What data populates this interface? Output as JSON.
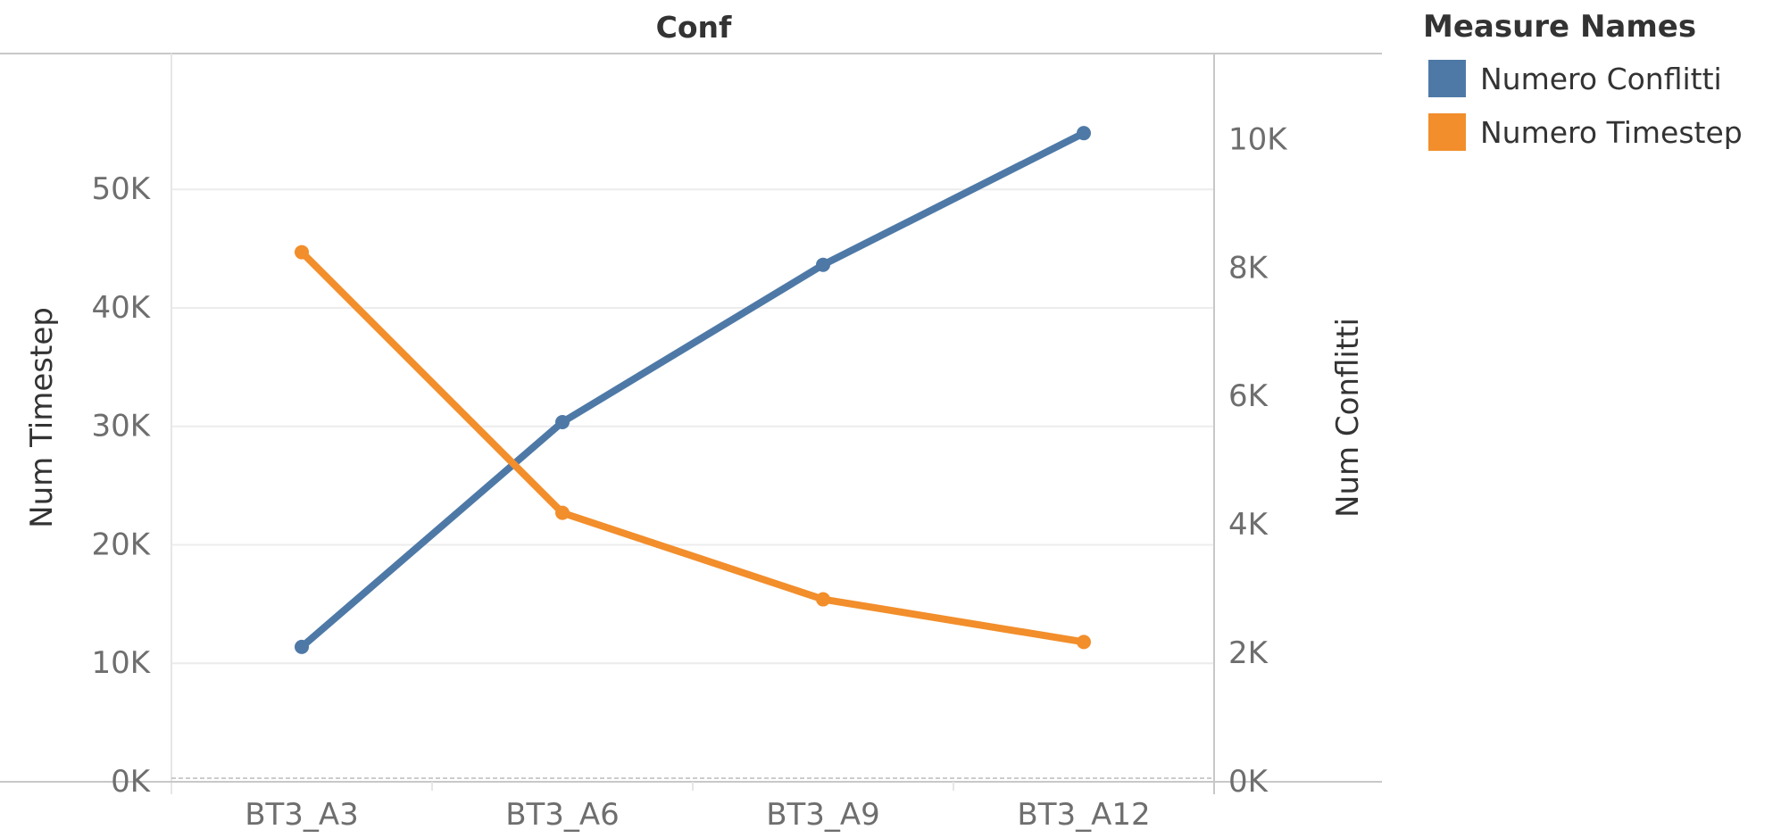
{
  "chart_data": {
    "type": "line",
    "title": "Conf",
    "categories": [
      "BT3_A3",
      "BT3_A6",
      "BT3_A9",
      "BT3_A12"
    ],
    "left_axis": {
      "label": "Num Timestep",
      "ticks": [
        "0K",
        "10K",
        "20K",
        "30K",
        "40K",
        "50K"
      ],
      "tick_values": [
        0,
        10000,
        20000,
        30000,
        40000,
        50000
      ],
      "ylim": [
        0,
        58000
      ]
    },
    "right_axis": {
      "label": "Num Conflitti",
      "ticks": [
        "0K",
        "2K",
        "4K",
        "6K",
        "8K",
        "10K"
      ],
      "tick_values": [
        0,
        2000,
        4000,
        6000,
        8000,
        10000
      ],
      "ylim": [
        0,
        10700
      ]
    },
    "legend": {
      "title": "Measure Names",
      "position": "top-right"
    },
    "series": [
      {
        "name": "Numero Conflitti",
        "axis": "right",
        "color": "#4e79a7",
        "values": [
          2100,
          5600,
          8050,
          10100
        ]
      },
      {
        "name": "Numero Timestep",
        "axis": "left",
        "color": "#f28e2b",
        "values": [
          44700,
          22700,
          15400,
          11800
        ]
      }
    ],
    "grid": true
  }
}
